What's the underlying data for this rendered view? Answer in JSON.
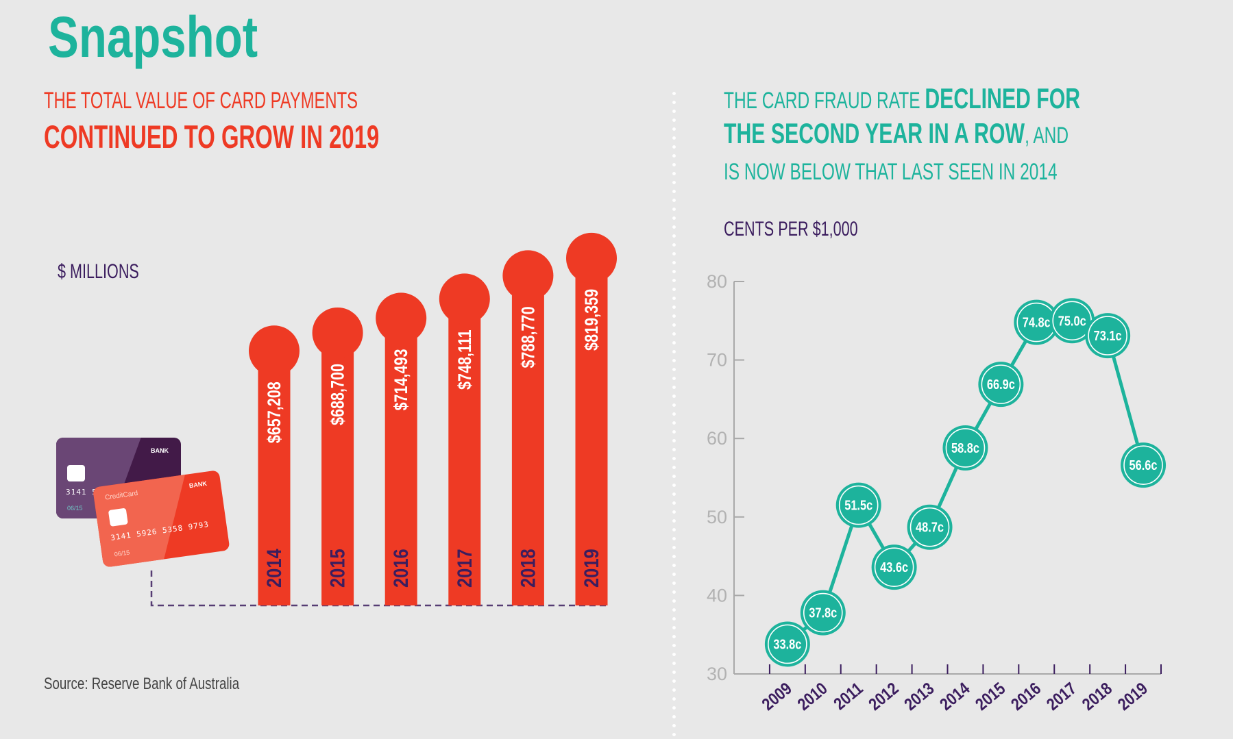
{
  "header": {
    "title": "Snapshot"
  },
  "left_panel": {
    "headline_line1": "THE TOTAL VALUE OF CARD PAYMENTS",
    "headline_line2": "CONTINUED TO GROW IN 2019",
    "unit_label": "$ MILLIONS",
    "source": "Source: Reserve Bank of Australia",
    "illustration": {
      "back_card": {
        "bank": "BANK",
        "number": "3141 5926 5358 9793",
        "expiry": "06/15"
      },
      "front_card": {
        "brand": "CreditCard",
        "bank": "BANK",
        "number": "3141 5926 5358 9793",
        "expiry": "06/15"
      }
    }
  },
  "right_panel": {
    "headline_line1_regular": "THE CARD FRAUD RATE ",
    "headline_line1_bold": "DECLINED FOR",
    "headline_line2_bold": "THE SECOND YEAR IN A ROW",
    "headline_line2_regular": ", AND",
    "headline_line3": "IS NOW BELOW THAT LAST SEEN IN 2014",
    "unit_label": "CENTS PER $1,000"
  },
  "colors": {
    "teal": "#1db39c",
    "red": "#ee3a24",
    "purple": "#3b1d5e",
    "axis_grey": "#a8a8a8",
    "background": "#e8e8e8"
  },
  "chart_data": [
    {
      "type": "bar",
      "title": "The total value of card payments continued to grow in 2019",
      "ylabel": "$ millions",
      "xlabel": "",
      "categories": [
        "2014",
        "2015",
        "2016",
        "2017",
        "2018",
        "2019"
      ],
      "values": [
        657208,
        688700,
        714493,
        748111,
        788770,
        819359
      ],
      "value_labels": [
        "$657,208",
        "$688,700",
        "$714,493",
        "$748,111",
        "$788,770",
        "$819,359"
      ],
      "grid": false,
      "legend": "none"
    },
    {
      "type": "line",
      "title": "The card fraud rate declined for the second year in a row",
      "ylabel": "Cents per $1,000",
      "xlabel": "",
      "categories": [
        "2009",
        "2010",
        "2011",
        "2012",
        "2013",
        "2014",
        "2015",
        "2016",
        "2017",
        "2018",
        "2019"
      ],
      "values": [
        33.8,
        37.8,
        51.5,
        43.6,
        48.7,
        58.8,
        66.9,
        74.8,
        75.0,
        73.1,
        56.6
      ],
      "value_labels": [
        "33.8c",
        "37.8c",
        "51.5c",
        "43.6c",
        "48.7c",
        "58.8c",
        "66.9c",
        "74.8c",
        "75.0c",
        "73.1c",
        "56.6c"
      ],
      "ylim": [
        30,
        80
      ],
      "yticks": [
        30,
        40,
        50,
        60,
        70,
        80
      ],
      "grid": false,
      "legend": "none"
    }
  ]
}
